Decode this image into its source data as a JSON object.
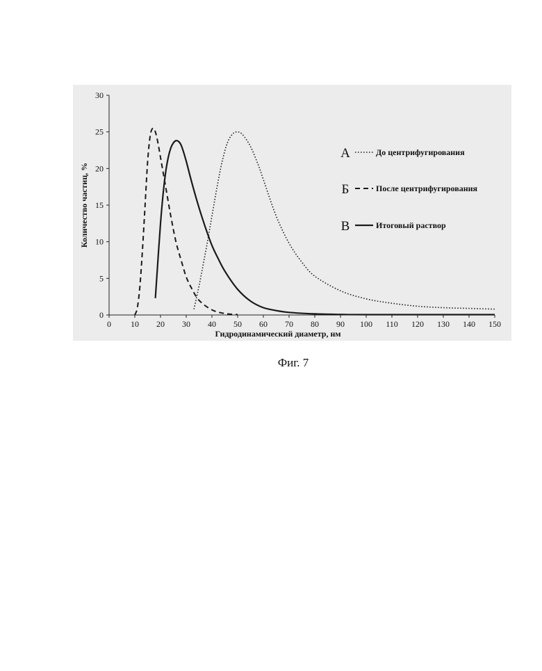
{
  "chart_data": {
    "type": "line",
    "xlabel": "Гидродинамический диаметр, нм",
    "ylabel": "Количество частиц, %",
    "xlim": [
      0,
      150
    ],
    "ylim": [
      0,
      30
    ],
    "x_ticks": [
      "0",
      "10",
      "20",
      "30",
      "40",
      "50",
      "60",
      "70",
      "80",
      "90",
      "100",
      "110",
      "120",
      "130",
      "140",
      "150"
    ],
    "y_ticks": [
      "0",
      "5",
      "10",
      "15",
      "20",
      "25",
      "30"
    ],
    "grid": false,
    "legend_position": "right",
    "series": [
      {
        "letter": "А",
        "name": "До центрифугирования",
        "style": "dotted",
        "x": [
          33,
          35,
          38,
          40,
          42,
          44,
          46,
          48,
          50,
          52,
          55,
          58,
          60,
          65,
          70,
          75,
          80,
          90,
          100,
          110,
          120,
          130,
          140,
          150
        ],
        "values": [
          0.8,
          4,
          9.5,
          13.5,
          17.5,
          21,
          23.5,
          24.7,
          25,
          24.6,
          23,
          20.5,
          18.5,
          13.5,
          9.8,
          7.2,
          5.3,
          3.3,
          2.2,
          1.6,
          1.2,
          1.0,
          0.9,
          0.8
        ]
      },
      {
        "letter": "Б",
        "name": "После центрифугирования",
        "style": "dashed",
        "x": [
          10,
          11,
          12,
          13,
          14,
          15,
          16,
          17,
          18,
          19,
          20,
          21,
          22,
          24,
          26,
          28,
          30,
          32,
          35,
          40,
          45,
          50
        ],
        "values": [
          0,
          1,
          4,
          9,
          15,
          21,
          24.5,
          25.5,
          25,
          23.5,
          21.5,
          19.5,
          17.5,
          13.5,
          10,
          7.5,
          5.2,
          3.7,
          2,
          0.7,
          0.2,
          0.05
        ]
      },
      {
        "letter": "В",
        "name": "Итоговый раствор",
        "style": "solid",
        "x": [
          18,
          19,
          20,
          21,
          22,
          23,
          24,
          25,
          26,
          27,
          28,
          29,
          30,
          32,
          34,
          36,
          38,
          40,
          42,
          45,
          50,
          55,
          60,
          65,
          70,
          80,
          90,
          100,
          150
        ],
        "values": [
          2.3,
          7.5,
          12.5,
          16.5,
          19.5,
          21.5,
          22.8,
          23.5,
          23.8,
          23.7,
          23.2,
          22.2,
          21,
          18.3,
          15.8,
          13.5,
          11.4,
          9.5,
          8,
          6,
          3.5,
          1.9,
          1,
          0.6,
          0.35,
          0.15,
          0.08,
          0.05,
          0.05
        ]
      }
    ]
  },
  "caption": "Фиг. 7"
}
